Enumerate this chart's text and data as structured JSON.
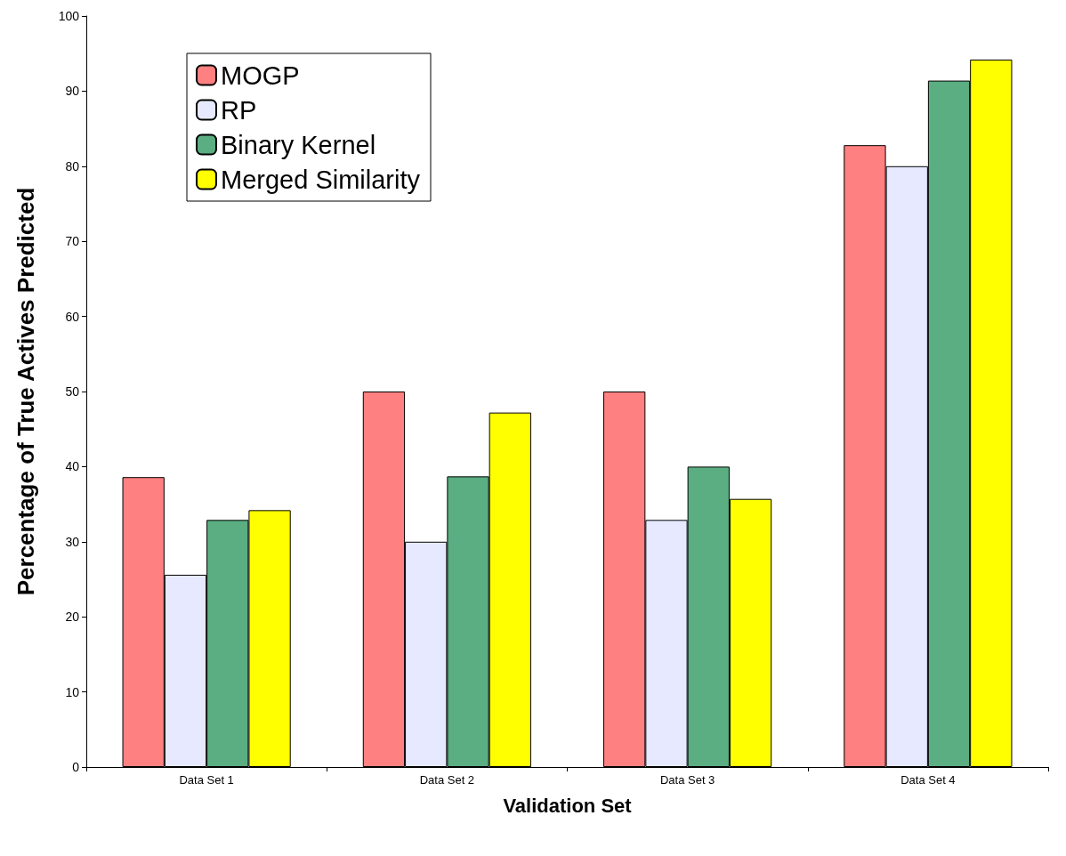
{
  "chart_data": {
    "type": "bar",
    "xlabel": "Validation Set",
    "ylabel": "Percentage of True Actives Predicted",
    "categories": [
      "Data Set 1",
      "Data Set 2",
      "Data Set 3",
      "Data Set 4"
    ],
    "series": [
      {
        "name": "MOGP",
        "color": "#ff8080",
        "values": [
          38.6,
          50,
          50,
          82.8
        ]
      },
      {
        "name": "RP",
        "color": "#e6e9ff",
        "values": [
          25.6,
          30,
          32.9,
          80
        ]
      },
      {
        "name": "Binary Kernel",
        "color": "#5aae82",
        "values": [
          32.9,
          38.7,
          40,
          91.4
        ]
      },
      {
        "name": "Merged Similarity",
        "color": "#ffff00",
        "values": [
          34.2,
          47.2,
          35.7,
          94.2
        ]
      }
    ],
    "ylim": [
      0,
      100
    ],
    "yticks": [
      0,
      10,
      20,
      30,
      40,
      50,
      60,
      70,
      80,
      90,
      100
    ],
    "grid": false,
    "legend": "top left"
  }
}
